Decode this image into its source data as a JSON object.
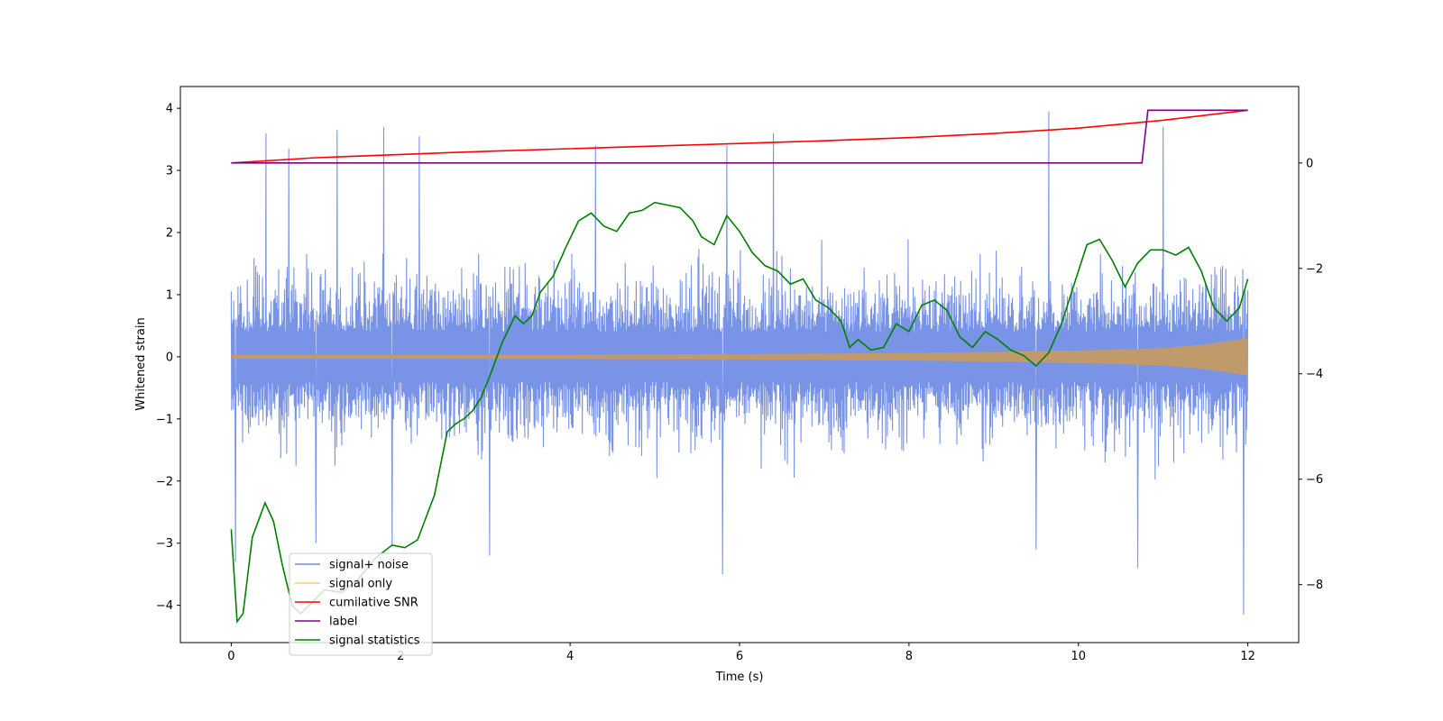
{
  "chart_data": {
    "type": "line",
    "xlabel": "Time (s)",
    "ylabel": "Whitened strain",
    "xlim": [
      -0.6,
      12.6
    ],
    "ylim_left": [
      -4.6,
      4.35
    ],
    "ylim_right": [
      -9.1,
      1.45
    ],
    "x_ticks": [
      0,
      2,
      4,
      6,
      8,
      10,
      12
    ],
    "y_left_ticks": [
      -4,
      -3,
      -2,
      -1,
      0,
      1,
      2,
      3,
      4
    ],
    "y_right_ticks": [
      -8,
      -6,
      -4,
      -2,
      0
    ],
    "legend_position": "lower-left",
    "series": [
      {
        "name": "signal+ noise",
        "color": "#6a88e3",
        "axis": "left",
        "style": "dense noise band",
        "x_range": [
          0,
          12
        ],
        "band_typical": [
          -1.95,
          2.0
        ],
        "spikes_high": [
          [
            0.41,
            3.6
          ],
          [
            0.68,
            3.35
          ],
          [
            1.25,
            3.65
          ],
          [
            1.8,
            3.7
          ],
          [
            2.22,
            3.55
          ],
          [
            4.3,
            3.4
          ],
          [
            5.85,
            3.4
          ],
          [
            6.4,
            3.6
          ],
          [
            9.65,
            3.95
          ],
          [
            11.0,
            3.7
          ]
        ],
        "spikes_low": [
          [
            0.05,
            -3.3
          ],
          [
            1.0,
            -3.0
          ],
          [
            1.9,
            -3.05
          ],
          [
            3.05,
            -3.2
          ],
          [
            5.8,
            -3.5
          ],
          [
            9.5,
            -3.1
          ],
          [
            10.7,
            -3.4
          ],
          [
            11.95,
            -4.15
          ]
        ]
      },
      {
        "name": "signal only",
        "color": "#f5a623",
        "axis": "left",
        "style": "chirp envelope",
        "x": [
          0,
          2,
          4,
          6,
          8,
          10,
          11,
          11.5,
          12
        ],
        "amplitude": [
          0.03,
          0.03,
          0.035,
          0.045,
          0.06,
          0.1,
          0.14,
          0.2,
          0.3
        ]
      },
      {
        "name": "cumilative SNR",
        "color": "#ff0000",
        "axis": "right",
        "x": [
          0,
          1,
          2,
          3,
          4,
          5,
          6,
          7,
          8,
          9,
          10,
          11,
          12
        ],
        "y": [
          0.0,
          0.1,
          0.16,
          0.22,
          0.27,
          0.32,
          0.37,
          0.42,
          0.48,
          0.56,
          0.66,
          0.81,
          1.0
        ]
      },
      {
        "name": "label",
        "color": "#800080",
        "axis": "right",
        "x": [
          0,
          10.75,
          10.82,
          12
        ],
        "y": [
          0,
          0,
          1,
          1
        ]
      },
      {
        "name": "signal statistics",
        "color": "#008000",
        "axis": "right",
        "x": [
          0,
          0.07,
          0.14,
          0.25,
          0.4,
          0.5,
          0.6,
          0.72,
          0.82,
          0.95,
          1.1,
          1.3,
          1.5,
          1.7,
          1.9,
          2.05,
          2.2,
          2.4,
          2.55,
          2.65,
          2.75,
          2.85,
          2.95,
          3.05,
          3.2,
          3.35,
          3.45,
          3.55,
          3.65,
          3.8,
          3.95,
          4.1,
          4.25,
          4.4,
          4.55,
          4.7,
          4.85,
          5.0,
          5.15,
          5.3,
          5.45,
          5.55,
          5.7,
          5.85,
          6.0,
          6.15,
          6.3,
          6.45,
          6.6,
          6.75,
          6.9,
          7.05,
          7.2,
          7.3,
          7.4,
          7.55,
          7.7,
          7.85,
          8.0,
          8.15,
          8.3,
          8.45,
          8.6,
          8.75,
          8.9,
          9.05,
          9.2,
          9.35,
          9.5,
          9.65,
          9.8,
          9.95,
          10.1,
          10.25,
          10.4,
          10.55,
          10.7,
          10.85,
          11.0,
          11.15,
          11.3,
          11.45,
          11.6,
          11.75,
          11.9,
          12.0
        ],
        "y": [
          -6.95,
          -8.7,
          -8.55,
          -7.1,
          -6.45,
          -6.8,
          -7.6,
          -8.4,
          -8.55,
          -8.35,
          -8.1,
          -8.15,
          -7.9,
          -7.5,
          -7.25,
          -7.3,
          -7.15,
          -6.3,
          -5.1,
          -4.95,
          -4.85,
          -4.7,
          -4.45,
          -4.05,
          -3.4,
          -2.9,
          -3.05,
          -2.9,
          -2.45,
          -2.15,
          -1.6,
          -1.1,
          -0.95,
          -1.2,
          -1.3,
          -0.95,
          -0.9,
          -0.75,
          -0.8,
          -0.85,
          -1.1,
          -1.4,
          -1.55,
          -1.0,
          -1.3,
          -1.7,
          -1.95,
          -2.05,
          -2.3,
          -2.2,
          -2.6,
          -2.75,
          -3.0,
          -3.5,
          -3.35,
          -3.55,
          -3.5,
          -3.05,
          -3.2,
          -2.7,
          -2.6,
          -2.8,
          -3.3,
          -3.5,
          -3.2,
          -3.35,
          -3.55,
          -3.65,
          -3.85,
          -3.6,
          -3.05,
          -2.3,
          -1.55,
          -1.45,
          -1.85,
          -2.35,
          -1.9,
          -1.65,
          -1.65,
          -1.75,
          -1.6,
          -2.05,
          -2.75,
          -3.0,
          -2.75,
          -2.2
        ]
      }
    ]
  }
}
